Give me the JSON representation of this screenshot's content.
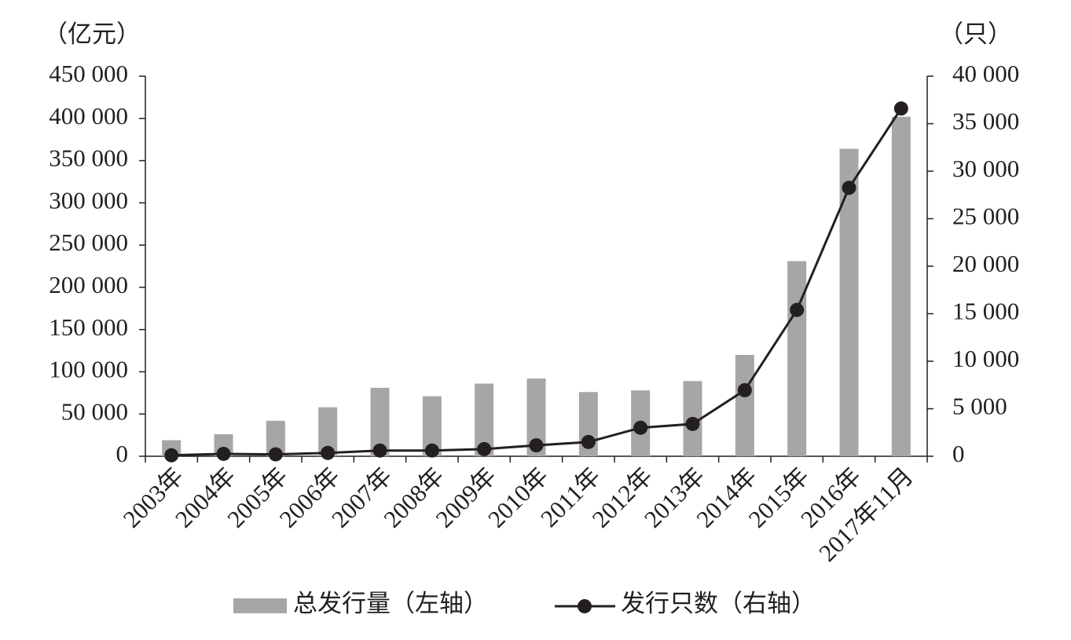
{
  "chart_data": {
    "type": "bar-line",
    "y_label": "（亿元）",
    "y2_label": "（只）",
    "categories": [
      "2003年",
      "2004年",
      "2005年",
      "2006年",
      "2007年",
      "2008年",
      "2009年",
      "2010年",
      "2011年",
      "2012年",
      "2013年",
      "2014年",
      "2015年",
      "2016年",
      "2017年11月"
    ],
    "series": [
      {
        "name": "总发行量（左轴）",
        "type": "bar",
        "color": "#a6a6a6",
        "values": [
          19000,
          26000,
          42000,
          58000,
          81000,
          71000,
          86000,
          92000,
          76000,
          78000,
          89000,
          120000,
          231000,
          364000,
          402000
        ]
      },
      {
        "name": "发行只数（右轴）",
        "type": "line",
        "axis": "y2",
        "color": "#231f20",
        "values": [
          100,
          250,
          200,
          350,
          600,
          600,
          750,
          1150,
          1500,
          3000,
          3400,
          6950,
          15400,
          28250,
          36600
        ]
      }
    ],
    "ylim": [
      0,
      450000
    ],
    "yticks": [
      0,
      {
        "value": 50000,
        "label": "50 000"
      },
      {
        "value": 100000,
        "label": "100 000"
      },
      {
        "value": 150000,
        "label": "150 000"
      },
      {
        "value": 200000,
        "label": "200 000"
      },
      {
        "value": 250000,
        "label": "250 000"
      },
      {
        "value": 300000,
        "label": "300 000"
      },
      {
        "value": 350000,
        "label": "350 000"
      },
      {
        "value": 400000,
        "label": "400 000"
      },
      {
        "value": 450000,
        "label": "450 000"
      }
    ],
    "y2lim": [
      0,
      40000
    ],
    "y2ticks": [
      0,
      {
        "value": 5000,
        "label": "5 000"
      },
      {
        "value": 10000,
        "label": "10 000"
      },
      {
        "value": 15000,
        "label": "15 000"
      },
      {
        "value": 20000,
        "label": "20 000"
      },
      {
        "value": 25000,
        "label": "25 000"
      },
      {
        "value": 30000,
        "label": "30 000"
      },
      {
        "value": 35000,
        "label": "35 000"
      },
      {
        "value": 40000,
        "label": "40 000"
      }
    ],
    "grid": false
  }
}
